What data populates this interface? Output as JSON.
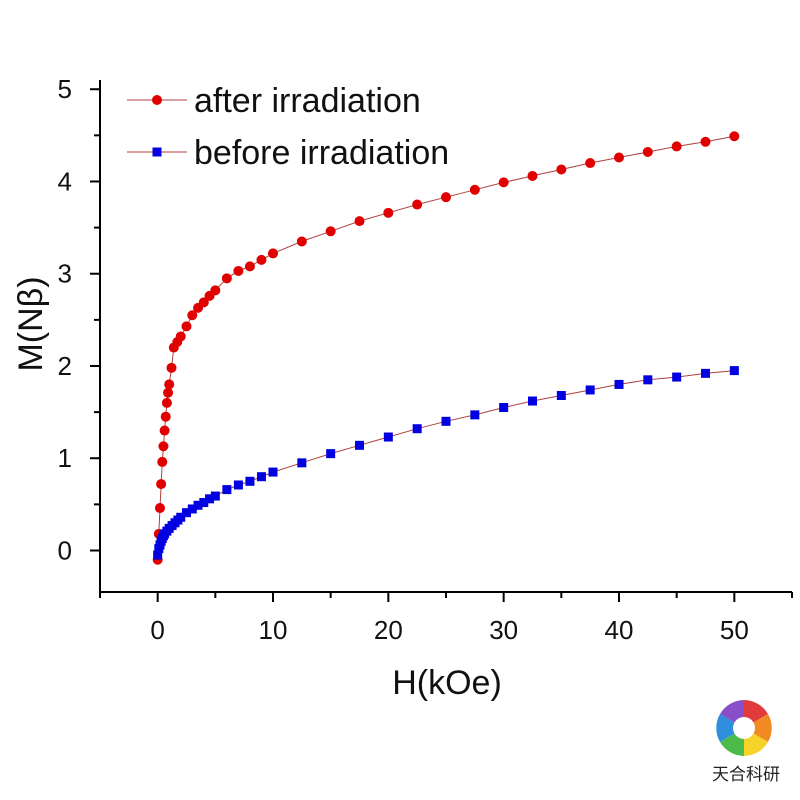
{
  "chart_data": {
    "type": "scatter",
    "xlabel": "H(kOe)",
    "ylabel": "M(Nβ)",
    "xlim": [
      -5,
      55
    ],
    "ylim": [
      -0.45,
      5.1
    ],
    "xticks": [
      0,
      10,
      20,
      30,
      40,
      50
    ],
    "yticks": [
      0,
      1,
      2,
      3,
      4,
      5
    ],
    "grid": false,
    "legend": "top-left",
    "series": [
      {
        "name": "after irradiation",
        "color": "#e00000",
        "marker": "circle",
        "x": [
          0.0,
          0.1,
          0.2,
          0.3,
          0.4,
          0.5,
          0.6,
          0.7,
          0.8,
          0.9,
          1.0,
          1.2,
          1.4,
          1.7,
          2.0,
          2.5,
          3.0,
          3.5,
          4.0,
          4.5,
          5.0,
          6.0,
          7.0,
          8.0,
          9.0,
          10.0,
          12.5,
          15.0,
          17.5,
          20.0,
          22.5,
          25.0,
          27.5,
          30.0,
          32.5,
          35.0,
          37.5,
          40.0,
          42.5,
          45.0,
          47.5,
          50.0
        ],
        "y": [
          -0.1,
          0.18,
          0.46,
          0.72,
          0.96,
          1.13,
          1.3,
          1.45,
          1.6,
          1.71,
          1.8,
          1.98,
          2.2,
          2.26,
          2.32,
          2.43,
          2.55,
          2.63,
          2.69,
          2.76,
          2.82,
          2.95,
          3.03,
          3.08,
          3.15,
          3.22,
          3.35,
          3.46,
          3.57,
          3.66,
          3.75,
          3.83,
          3.91,
          3.99,
          4.06,
          4.13,
          4.2,
          4.26,
          4.32,
          4.38,
          4.43,
          4.49
        ]
      },
      {
        "name": "before irradiation",
        "color": "#0000e0",
        "marker": "square",
        "x": [
          0.0,
          0.1,
          0.2,
          0.3,
          0.4,
          0.5,
          0.6,
          0.8,
          1.0,
          1.25,
          1.5,
          1.75,
          2.0,
          2.5,
          3.0,
          3.5,
          4.0,
          4.5,
          5.0,
          6.0,
          7.0,
          8.0,
          9.0,
          10.0,
          12.5,
          15.0,
          17.5,
          20.0,
          22.5,
          25.0,
          27.5,
          30.0,
          32.5,
          35.0,
          37.5,
          40.0,
          42.5,
          45.0,
          47.5,
          50.0
        ],
        "y": [
          -0.05,
          0.02,
          0.06,
          0.1,
          0.13,
          0.16,
          0.18,
          0.21,
          0.24,
          0.27,
          0.3,
          0.33,
          0.36,
          0.41,
          0.45,
          0.49,
          0.52,
          0.56,
          0.59,
          0.66,
          0.71,
          0.75,
          0.8,
          0.85,
          0.95,
          1.05,
          1.14,
          1.23,
          1.32,
          1.4,
          1.47,
          1.55,
          1.62,
          1.68,
          1.74,
          1.8,
          1.85,
          1.88,
          1.92,
          1.95
        ]
      }
    ]
  },
  "watermark": {
    "text": "天合科研",
    "icon": "rainbow-swirl-logo"
  }
}
